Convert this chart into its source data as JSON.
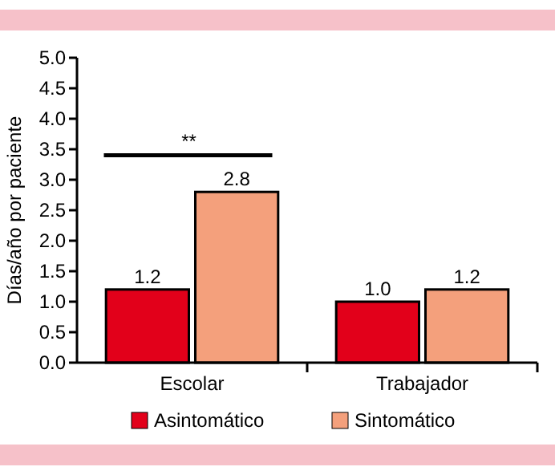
{
  "chart_data": {
    "type": "bar",
    "ylabel": "Días/año por paciente",
    "categories": [
      "Escolar",
      "Trabajador"
    ],
    "series": [
      {
        "name": "Asintomático",
        "color": "#e2001a",
        "values": [
          1.2,
          1.0
        ],
        "value_labels": [
          "1.2",
          "1.0"
        ]
      },
      {
        "name": "Sintomático",
        "color": "#f4a07c",
        "values": [
          2.8,
          1.2
        ],
        "value_labels": [
          "2.8",
          "1.2"
        ]
      }
    ],
    "ylim": [
      0,
      5
    ],
    "yticks": [
      {
        "value": 0,
        "label": "0.0"
      },
      {
        "value": 0.5,
        "label": "0.5"
      },
      {
        "value": 1,
        "label": "1.0"
      },
      {
        "value": 1.5,
        "label": "1.5"
      },
      {
        "value": 2,
        "label": "2.0"
      },
      {
        "value": 2.5,
        "label": "2.5"
      },
      {
        "value": 3,
        "label": "3.0"
      },
      {
        "value": 3.5,
        "label": "3.5"
      },
      {
        "value": 4,
        "label": "4.0"
      },
      {
        "value": 4.5,
        "label": "4.5"
      },
      {
        "value": 5,
        "label": "5.0"
      }
    ],
    "legend": "bottom",
    "grid": false,
    "annotations": [
      "**"
    ]
  }
}
